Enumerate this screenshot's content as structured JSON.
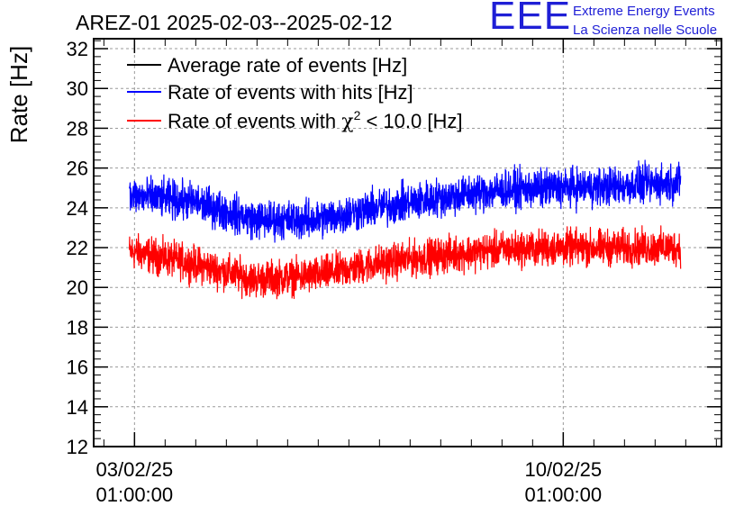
{
  "logo": {
    "mark": "EEE",
    "line1": "Extreme Energy Events",
    "line2": "La Scienza nelle Scuole"
  },
  "chart_data": {
    "type": "line",
    "title": "AREZ-01 2025-02-03--2025-02-12",
    "ylabel": "Rate [Hz]",
    "xlabel": "",
    "ylim": [
      12,
      32.5
    ],
    "yticks": [
      12,
      14,
      16,
      18,
      20,
      22,
      24,
      26,
      28,
      30,
      32
    ],
    "xticks": [
      {
        "date": "03/02/25",
        "time": "01:00:00"
      },
      {
        "date": "10/02/25",
        "time": "01:00:00"
      }
    ],
    "grid": true,
    "legend": "top-left",
    "x_range": [
      "2025-02-02 T09:00",
      "2025-02-12 T15:00"
    ],
    "data_range": [
      "2025-02-02 T23:00",
      "2025-02-11 T23:00"
    ],
    "series": [
      {
        "name": "Average rate of events [Hz]",
        "color": "#000000",
        "note": "",
        "x": [
          "2025-02-03",
          "2025-02-04",
          "2025-02-05",
          "2025-02-06",
          "2025-02-07",
          "2025-02-08",
          "2025-02-09",
          "2025-02-10",
          "2025-02-11",
          "2025-02-12"
        ],
        "values": [
          24.6,
          24.3,
          23.4,
          23.4,
          24.0,
          24.5,
          24.9,
          25.0,
          25.1,
          25.3
        ]
      },
      {
        "name": "Rate of events with hits [Hz]",
        "color": "#0000ff",
        "x": [
          "2025-02-03",
          "2025-02-04",
          "2025-02-05",
          "2025-02-06",
          "2025-02-07",
          "2025-02-08",
          "2025-02-09",
          "2025-02-10",
          "2025-02-11",
          "2025-02-12"
        ],
        "values": [
          24.6,
          24.3,
          23.4,
          23.4,
          24.0,
          24.5,
          24.9,
          25.0,
          25.1,
          25.3
        ],
        "spread": 1.4
      },
      {
        "name": "Rate of events with χ² < 10.0 [Hz]",
        "legend_parts": {
          "before": "Rate of events with ",
          "chi": "χ",
          "sup": "2",
          "after": " < 10.0 [Hz]"
        },
        "color": "#ff0000",
        "x": [
          "2025-02-03",
          "2025-02-04",
          "2025-02-05",
          "2025-02-06",
          "2025-02-07",
          "2025-02-08",
          "2025-02-09",
          "2025-02-10",
          "2025-02-11",
          "2025-02-12"
        ],
        "values": [
          21.8,
          21.2,
          20.4,
          20.6,
          21.2,
          21.6,
          21.9,
          22.0,
          22.0,
          22.0
        ],
        "spread": 1.3
      }
    ]
  }
}
